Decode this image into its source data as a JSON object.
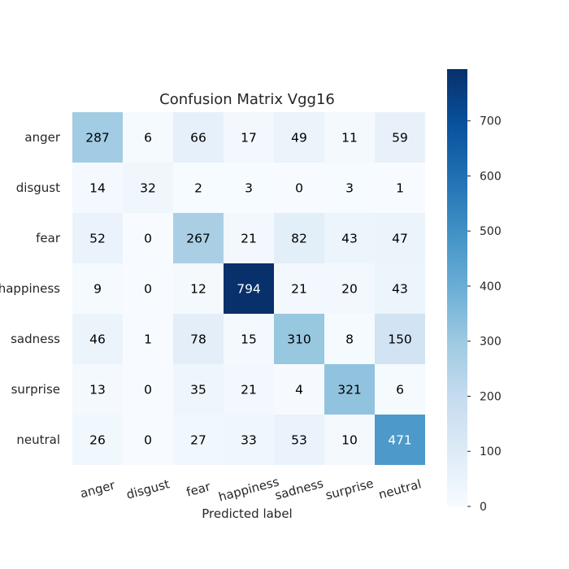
{
  "chart_data": {
    "type": "heatmap",
    "title": "Confusion Matrix Vgg16",
    "xlabel": "Predicted label",
    "ylabel": "",
    "x_categories": [
      "anger",
      "disgust",
      "fear",
      "happiness",
      "sadness",
      "surprise",
      "neutral"
    ],
    "y_categories": [
      "anger",
      "disgust",
      "fear",
      "happiness",
      "sadness",
      "surprise",
      "neutral"
    ],
    "values": [
      [
        287,
        6,
        66,
        17,
        49,
        11,
        59
      ],
      [
        14,
        32,
        2,
        3,
        0,
        3,
        1
      ],
      [
        52,
        0,
        267,
        21,
        82,
        43,
        47
      ],
      [
        9,
        0,
        12,
        794,
        21,
        20,
        43
      ],
      [
        46,
        1,
        78,
        15,
        310,
        8,
        150
      ],
      [
        13,
        0,
        35,
        21,
        4,
        321,
        6
      ],
      [
        26,
        0,
        27,
        33,
        53,
        10,
        471
      ]
    ],
    "colormap": "Blues",
    "vmin": 0,
    "vmax": 794,
    "colorbar_ticks": [
      0,
      100,
      200,
      300,
      400,
      500,
      600,
      700
    ],
    "grid": false
  }
}
